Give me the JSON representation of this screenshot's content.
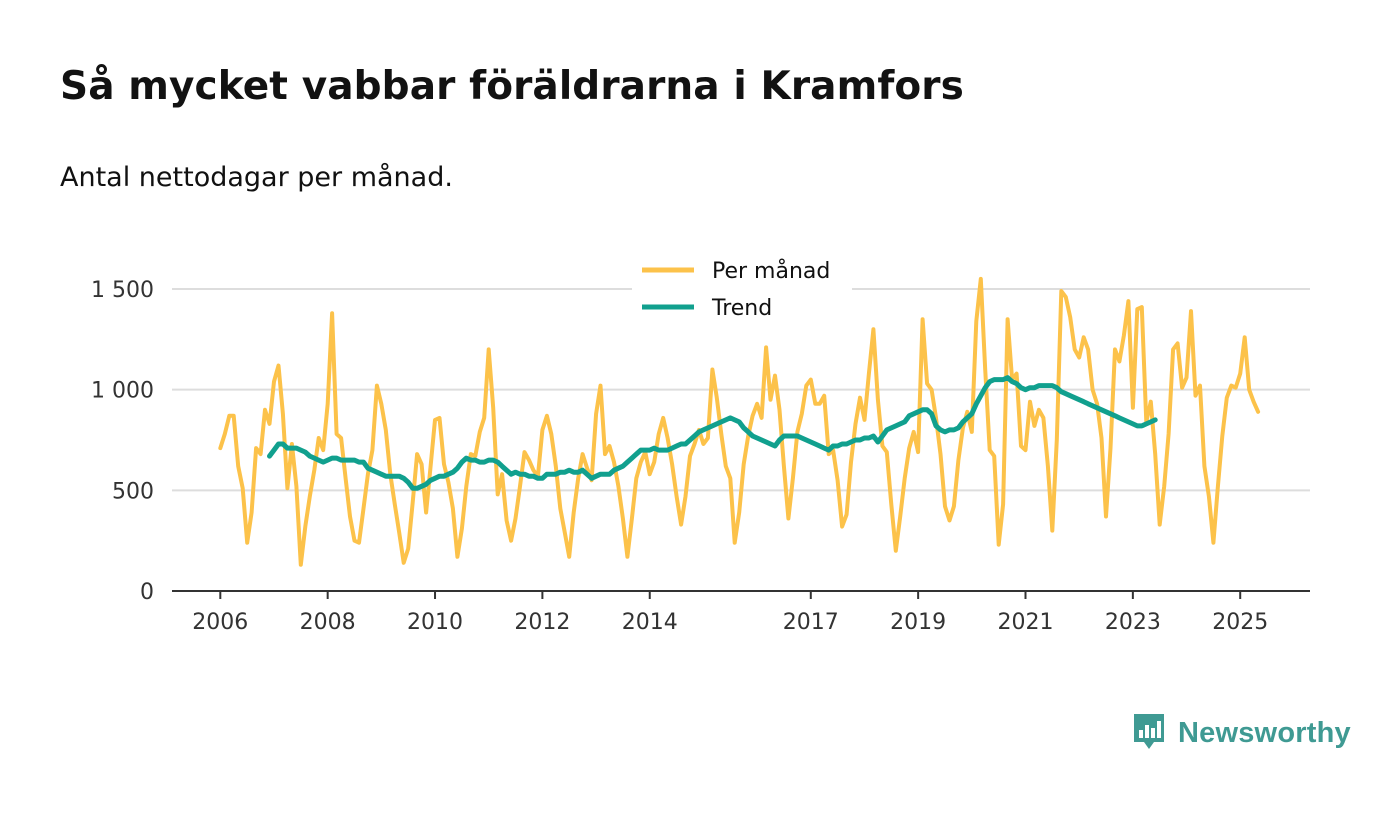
{
  "title": "Så mycket vabbar föräldrarna i Kramfors",
  "subtitle": "Antal nettodagar per månad.",
  "brand": {
    "name": "Newsworthy",
    "color": "#3f9a93",
    "icon": "bar-chart-speech-icon"
  },
  "colors": {
    "monthly": "#fcc24a",
    "trend": "#11a08e",
    "grid": "#dddddd",
    "axis": "#333333"
  },
  "chart_data": {
    "type": "line",
    "title": "Så mycket vabbar föräldrarna i Kramfors",
    "subtitle": "Antal nettodagar per månad.",
    "xlabel": "",
    "ylabel": "",
    "x_start": "2006-01",
    "x_interval": "month",
    "xlim": [
      2005.1,
      2026.3
    ],
    "ylim": [
      0,
      1500
    ],
    "yticks": [
      0,
      500,
      1000,
      1500
    ],
    "ytick_labels": [
      "0",
      "500",
      "1 000",
      "1 500"
    ],
    "xticks": [
      2006,
      2008,
      2010,
      2012,
      2014,
      2017,
      2019,
      2021,
      2023,
      2025
    ],
    "xtick_labels": [
      "2006",
      "2008",
      "2010",
      "2012",
      "2014",
      "2017",
      "2019",
      "2021",
      "2023",
      "2025"
    ],
    "grid": true,
    "legend_position": "top-center",
    "series": [
      {
        "name": "Per månad",
        "color": "#fcc24a",
        "values": [
          710,
          780,
          870,
          870,
          620,
          510,
          240,
          390,
          710,
          680,
          900,
          830,
          1040,
          1120,
          880,
          510,
          730,
          520,
          130,
          320,
          470,
          600,
          760,
          700,
          930,
          1380,
          780,
          760,
          560,
          370,
          250,
          240,
          410,
          580,
          700,
          1020,
          930,
          800,
          580,
          430,
          290,
          140,
          210,
          440,
          680,
          630,
          390,
          620,
          850,
          860,
          630,
          540,
          410,
          170,
          310,
          520,
          680,
          670,
          790,
          860,
          1200,
          910,
          480,
          580,
          350,
          250,
          360,
          520,
          690,
          650,
          600,
          570,
          800,
          870,
          780,
          620,
          410,
          290,
          170,
          390,
          560,
          680,
          610,
          550,
          880,
          1020,
          680,
          720,
          640,
          520,
          360,
          170,
          360,
          560,
          640,
          690,
          580,
          640,
          780,
          860,
          760,
          630,
          470,
          330,
          470,
          670,
          730,
          800,
          730,
          760,
          1100,
          960,
          780,
          620,
          560,
          240,
          390,
          630,
          770,
          870,
          930,
          860,
          1210,
          950,
          1070,
          900,
          620,
          360,
          560,
          790,
          880,
          1020,
          1050,
          930,
          930,
          970,
          680,
          700,
          550,
          320,
          380,
          640,
          830,
          960,
          850,
          1080,
          1300,
          950,
          720,
          690,
          430,
          200,
          370,
          560,
          710,
          790,
          690,
          1350,
          1030,
          1000,
          860,
          680,
          420,
          350,
          420,
          650,
          810,
          890,
          790,
          1340,
          1550,
          1100,
          700,
          670,
          230,
          430,
          1350,
          1050,
          1080,
          720,
          700,
          940,
          820,
          900,
          860,
          620,
          300,
          750,
          1490,
          1460,
          1360,
          1200,
          1160,
          1260,
          1200,
          1000,
          930,
          760,
          370,
          710,
          1200,
          1140,
          1270,
          1440,
          910,
          1400,
          1410,
          840,
          940,
          680,
          330,
          520,
          780,
          1200,
          1230,
          1010,
          1060,
          1390,
          970,
          1020,
          620,
          470,
          240,
          520,
          770,
          960,
          1020,
          1010,
          1080,
          1260,
          1000,
          940,
          890
        ]
      },
      {
        "name": "Trend",
        "color": "#11a08e",
        "start": "2006-12",
        "values": [
          670,
          700,
          730,
          730,
          710,
          710,
          710,
          700,
          690,
          670,
          660,
          650,
          640,
          650,
          660,
          660,
          650,
          650,
          650,
          650,
          640,
          640,
          610,
          600,
          590,
          580,
          570,
          570,
          570,
          570,
          560,
          540,
          510,
          510,
          520,
          530,
          550,
          560,
          570,
          570,
          580,
          590,
          610,
          640,
          660,
          650,
          650,
          640,
          640,
          650,
          650,
          640,
          620,
          600,
          580,
          590,
          580,
          580,
          570,
          570,
          560,
          560,
          580,
          580,
          580,
          590,
          590,
          600,
          590,
          590,
          600,
          580,
          560,
          570,
          580,
          580,
          580,
          600,
          610,
          620,
          640,
          660,
          680,
          700,
          700,
          700,
          710,
          700,
          700,
          700,
          710,
          720,
          730,
          730,
          750,
          770,
          790,
          800,
          810,
          820,
          830,
          840,
          850,
          860,
          850,
          840,
          810,
          790,
          770,
          760,
          750,
          740,
          730,
          720,
          750,
          770,
          770,
          770,
          770,
          760,
          750,
          740,
          730,
          720,
          710,
          700,
          720,
          720,
          730,
          730,
          740,
          750,
          750,
          760,
          760,
          770,
          740,
          770,
          800,
          810,
          820,
          830,
          840,
          870,
          880,
          890,
          900,
          900,
          880,
          820,
          800,
          790,
          800,
          800,
          810,
          840,
          860,
          880,
          930,
          970,
          1010,
          1040,
          1050,
          1050,
          1050,
          1060,
          1040,
          1030,
          1010,
          1000,
          1010,
          1010,
          1020,
          1020,
          1020,
          1020,
          1010,
          990,
          980,
          970,
          960,
          950,
          940,
          930,
          920,
          910,
          900,
          890,
          880,
          870,
          860,
          850,
          840,
          830,
          820,
          820,
          830,
          840,
          850
        ]
      }
    ]
  }
}
